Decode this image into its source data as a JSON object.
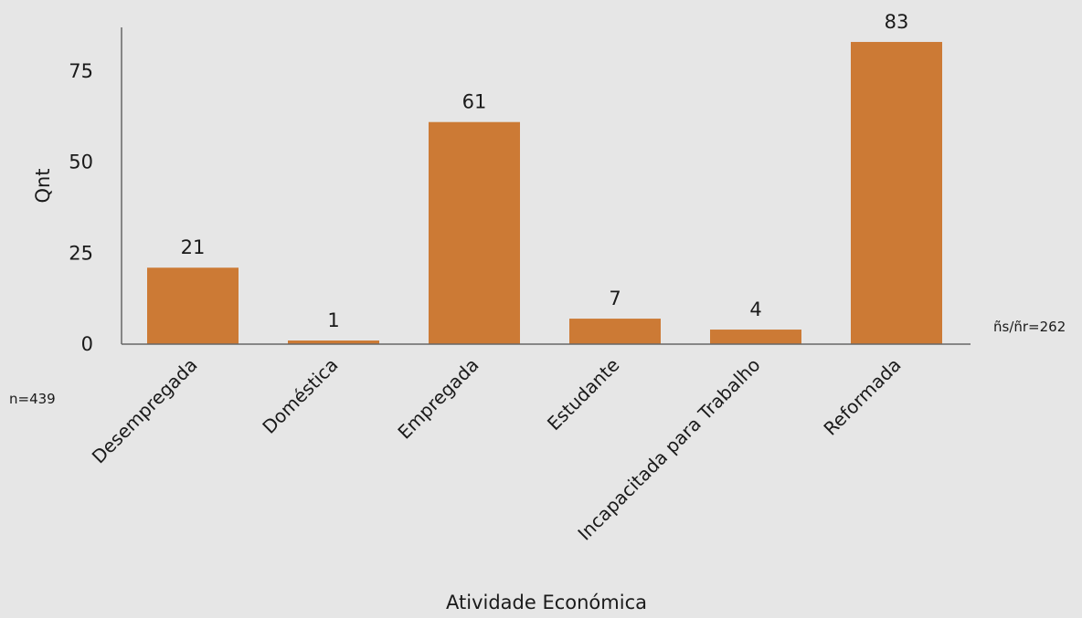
{
  "chart_data": {
    "type": "bar",
    "categories": [
      "Desempregada",
      "Doméstica",
      "Empregada",
      "Estudante",
      "Incapacitada para Trabalho",
      "Reformada"
    ],
    "values": [
      21,
      1,
      61,
      7,
      4,
      83
    ],
    "data_labels": [
      "21",
      "1",
      "61",
      "7",
      "4",
      "83"
    ],
    "xlabel": "Atividade Económica",
    "ylabel": "Qnt",
    "ylim": [
      0,
      87
    ],
    "yticks": [
      0,
      25,
      50,
      75
    ],
    "ytick_labels": [
      "0",
      "25",
      "50",
      "75"
    ],
    "grid": false,
    "bar_color": "#cc7a35",
    "background": "#e6e6e6",
    "notes": {
      "n": "n=439",
      "ns_nr": "ñs/ñr=262"
    }
  }
}
